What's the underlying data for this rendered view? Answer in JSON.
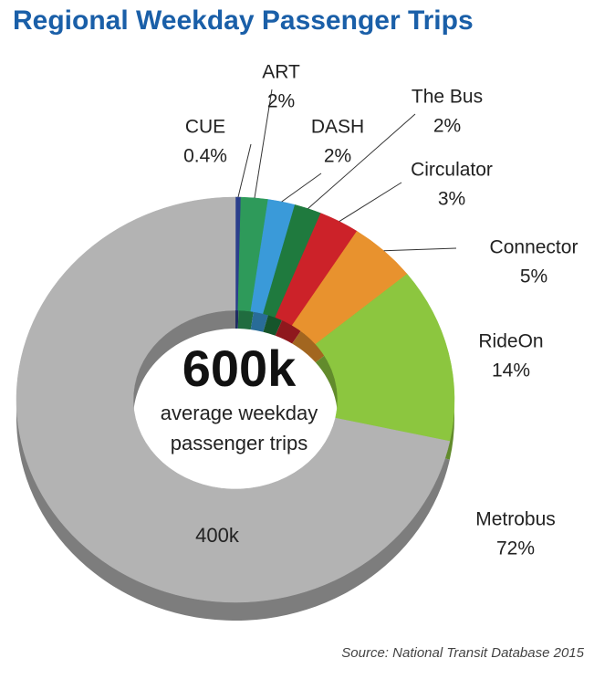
{
  "chart_data": {
    "type": "pie",
    "title": "Regional Weekday Passenger Trips",
    "categories": [
      "CUE",
      "ART",
      "DASH",
      "The Bus",
      "Circulator",
      "Connector",
      "RideOn",
      "Metrobus"
    ],
    "values": [
      0.4,
      2,
      2,
      2,
      3,
      5,
      14,
      72
    ],
    "value_labels": [
      "0.4%",
      "2%",
      "2%",
      "2%",
      "3%",
      "5%",
      "14%",
      "72%"
    ],
    "colors": [
      "#2b3f8c",
      "#2e9a5a",
      "#3a9ad9",
      "#1f7a3e",
      "#cc2229",
      "#e8922e",
      "#8cc63f",
      "#b3b3b3"
    ],
    "center_label": "600k",
    "center_text": [
      "average weekday",
      "passenger trips"
    ],
    "slice_annotation": "400k",
    "source": "Source: National Transit Database 2015"
  }
}
